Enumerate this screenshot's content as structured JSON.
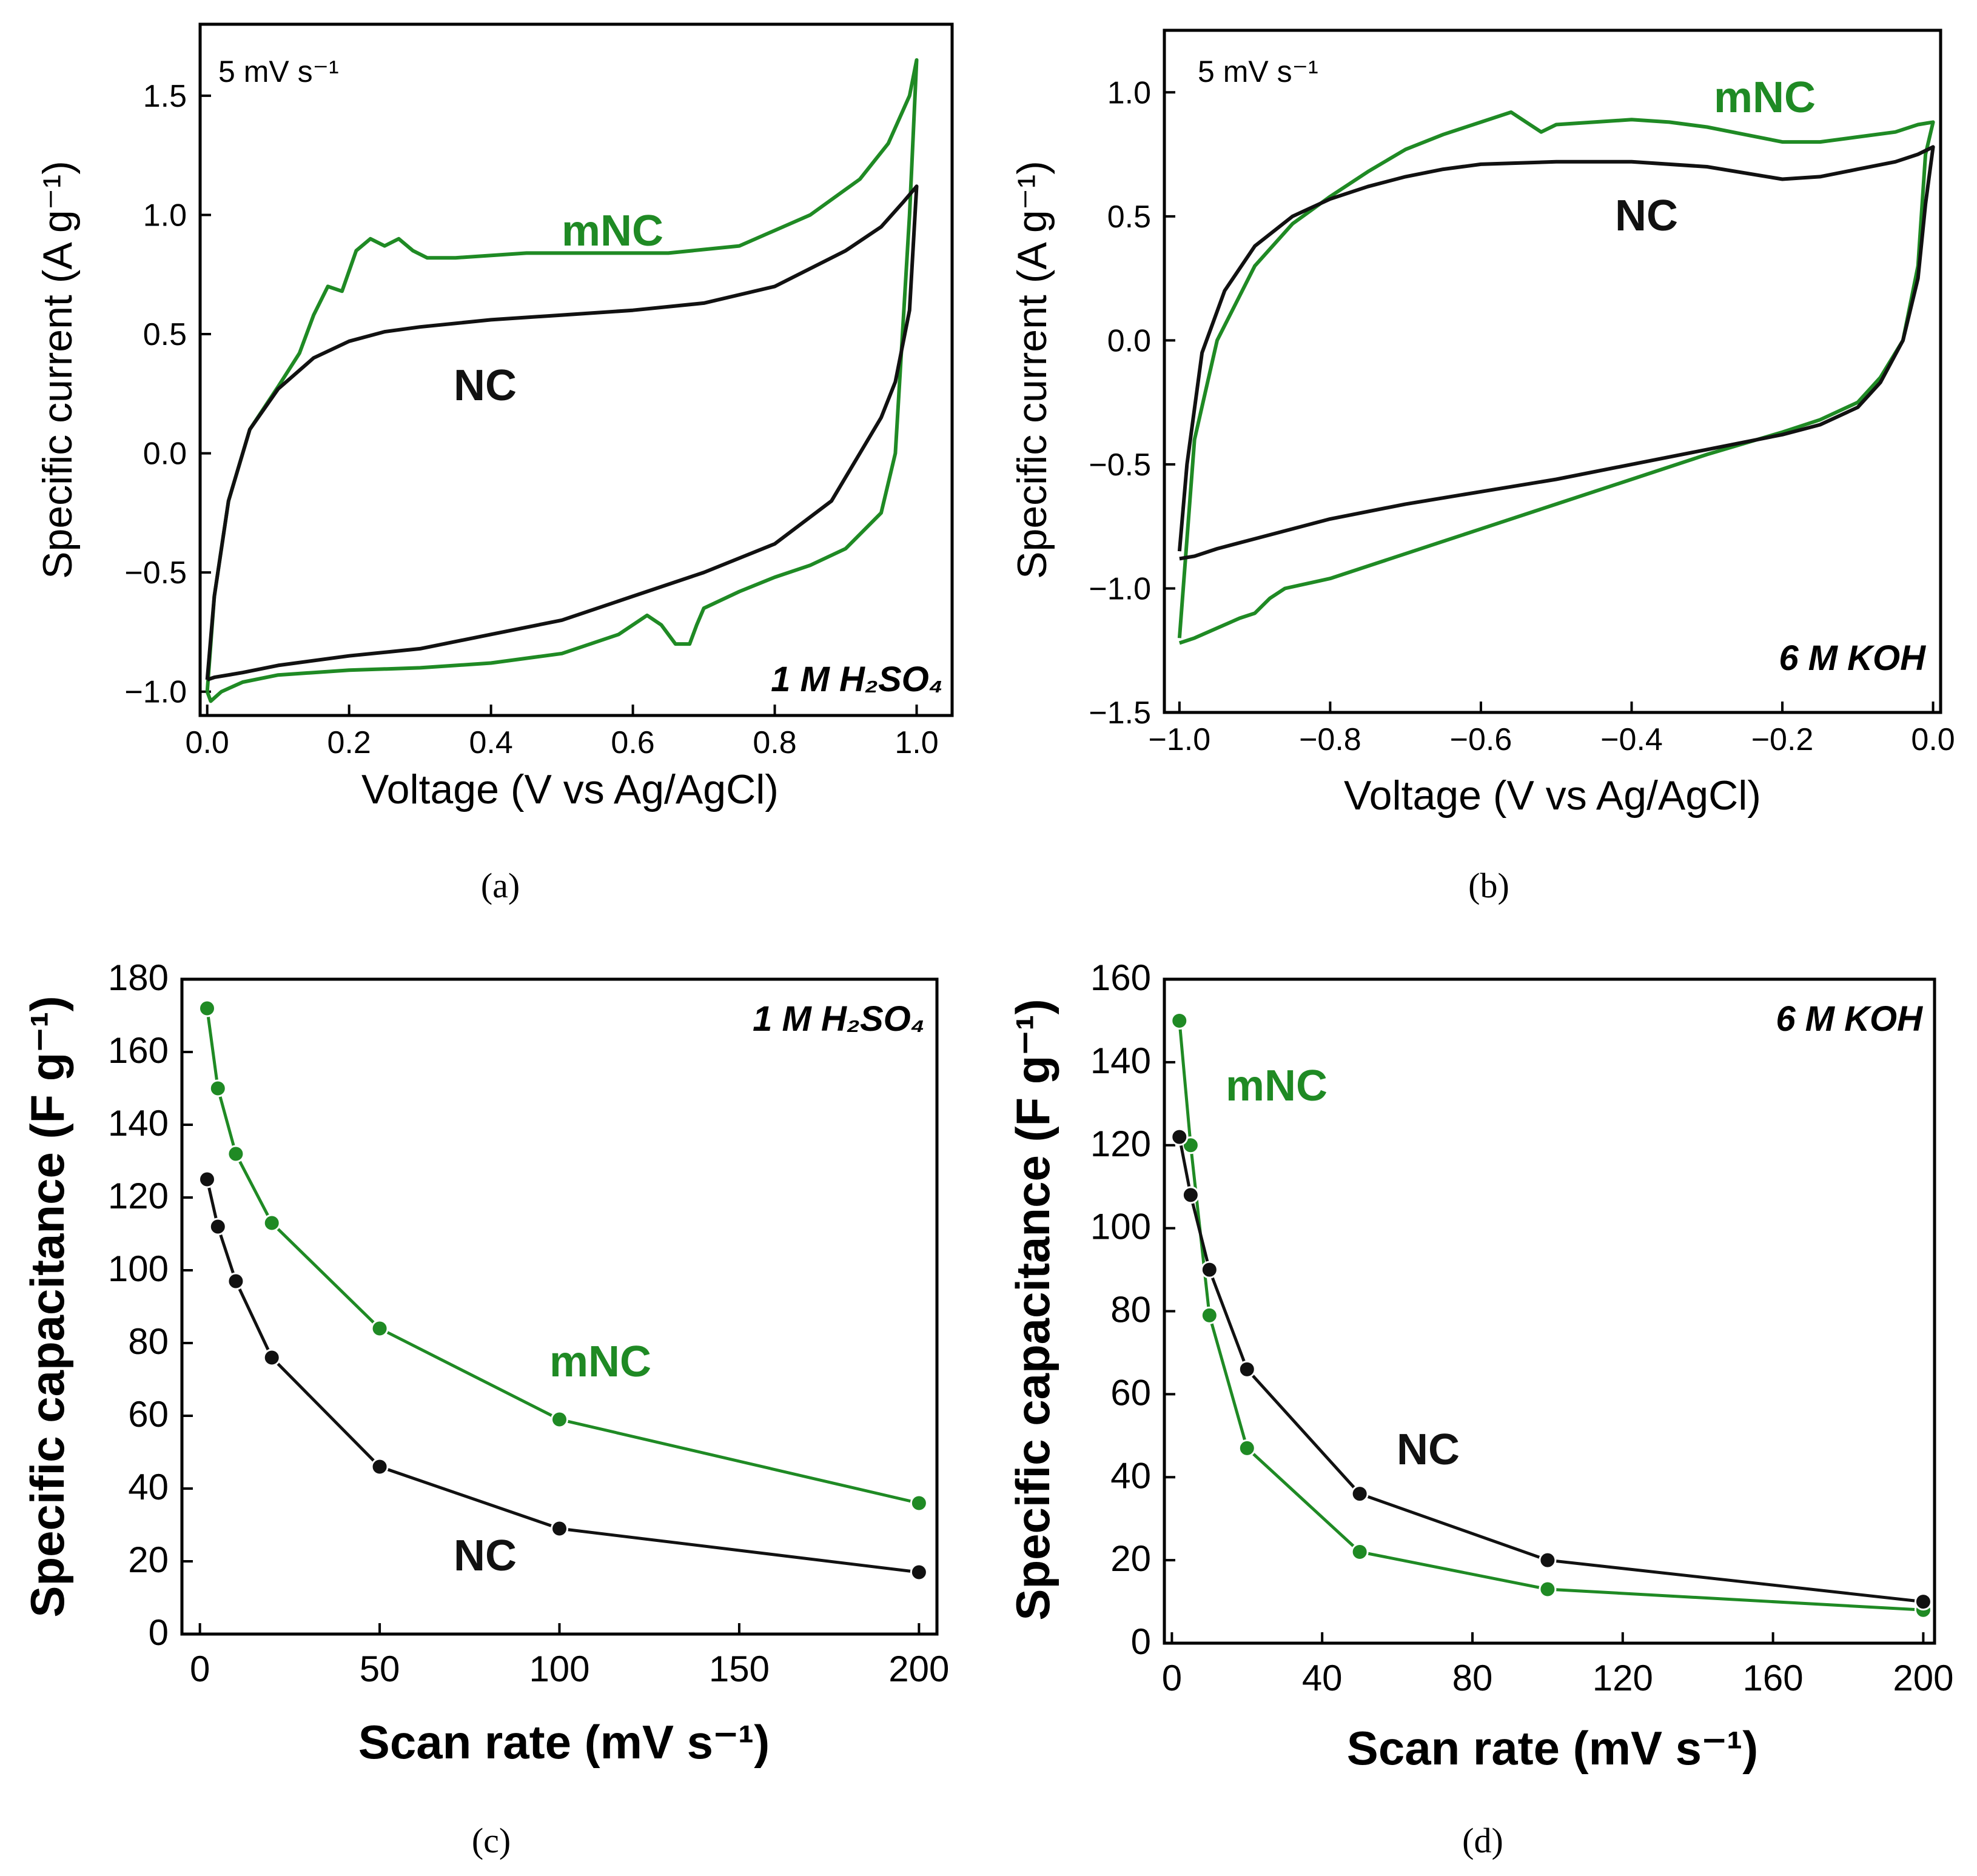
{
  "colors": {
    "mNC": "#1f8a24",
    "NC": "#111111"
  },
  "chart_data": [
    {
      "id": "a",
      "type": "line",
      "caption": "(a)",
      "xlabel": "Voltage (V vs Ag/AgCl)",
      "ylabel": "Specific current (A g⁻¹)",
      "scan_rate": "5 mV s⁻¹",
      "electrolyte": "1 M H₂SO₄",
      "xlim": [
        -0.01,
        1.05
      ],
      "ylim": [
        -1.1,
        1.8
      ],
      "xticks": [
        0.0,
        0.2,
        0.4,
        0.6,
        0.8,
        1.0
      ],
      "xtick_labels": [
        "0.0",
        "0.2",
        "0.4",
        "0.6",
        "0.8",
        "1.0"
      ],
      "yticks": [
        -1.0,
        -0.5,
        0.0,
        0.5,
        1.0,
        1.5
      ],
      "ytick_labels": [
        "−1.0",
        "−0.5",
        "0.0",
        "0.5",
        "1.0",
        "1.5"
      ],
      "series": [
        {
          "name": "mNC",
          "label": "mNC",
          "x": [
            0.0,
            0.01,
            0.03,
            0.06,
            0.1,
            0.13,
            0.15,
            0.17,
            0.19,
            0.21,
            0.23,
            0.25,
            0.27,
            0.29,
            0.31,
            0.35,
            0.45,
            0.55,
            0.65,
            0.75,
            0.85,
            0.92,
            0.96,
            0.99,
            1.0,
            0.99,
            0.98,
            0.97,
            0.95,
            0.9,
            0.85,
            0.8,
            0.75,
            0.7,
            0.69,
            0.68,
            0.66,
            0.64,
            0.62,
            0.58,
            0.5,
            0.4,
            0.3,
            0.2,
            0.1,
            0.05,
            0.02,
            0.005,
            0.0
          ],
          "y": [
            -1.0,
            -0.6,
            -0.2,
            0.1,
            0.28,
            0.42,
            0.58,
            0.7,
            0.68,
            0.85,
            0.9,
            0.87,
            0.9,
            0.85,
            0.82,
            0.82,
            0.84,
            0.84,
            0.84,
            0.87,
            1.0,
            1.15,
            1.3,
            1.5,
            1.65,
            1.0,
            0.5,
            0.0,
            -0.25,
            -0.4,
            -0.47,
            -0.52,
            -0.58,
            -0.65,
            -0.72,
            -0.8,
            -0.8,
            -0.72,
            -0.68,
            -0.76,
            -0.84,
            -0.88,
            -0.9,
            -0.91,
            -0.93,
            -0.96,
            -1.0,
            -1.04,
            -1.0
          ]
        },
        {
          "name": "NC",
          "label": "NC",
          "x": [
            0.0,
            0.01,
            0.03,
            0.06,
            0.1,
            0.15,
            0.2,
            0.25,
            0.3,
            0.4,
            0.5,
            0.6,
            0.7,
            0.8,
            0.9,
            0.95,
            0.98,
            1.0,
            0.99,
            0.97,
            0.95,
            0.92,
            0.88,
            0.8,
            0.7,
            0.6,
            0.5,
            0.4,
            0.3,
            0.2,
            0.1,
            0.05,
            0.01,
            0.0
          ],
          "y": [
            -0.95,
            -0.6,
            -0.2,
            0.1,
            0.27,
            0.4,
            0.47,
            0.51,
            0.53,
            0.56,
            0.58,
            0.6,
            0.63,
            0.7,
            0.85,
            0.95,
            1.05,
            1.12,
            0.6,
            0.3,
            0.15,
            0.0,
            -0.2,
            -0.38,
            -0.5,
            -0.6,
            -0.7,
            -0.76,
            -0.82,
            -0.85,
            -0.89,
            -0.92,
            -0.94,
            -0.95
          ]
        }
      ]
    },
    {
      "id": "b",
      "type": "line",
      "caption": "(b)",
      "xlabel": "Voltage (V vs Ag/AgCl)",
      "ylabel": "Specific current (A g⁻¹)",
      "scan_rate": "5 mV s⁻¹",
      "electrolyte": "6 M  KOH",
      "xlim": [
        -1.02,
        0.01
      ],
      "ylim": [
        -1.5,
        1.25
      ],
      "xticks": [
        -1.0,
        -0.8,
        -0.6,
        -0.4,
        -0.2,
        0.0
      ],
      "xtick_labels": [
        "−1.0",
        "−0.8",
        "−0.6",
        "−0.4",
        "−0.2",
        "0.0"
      ],
      "yticks": [
        -1.5,
        -1.0,
        -0.5,
        0.0,
        0.5,
        1.0
      ],
      "ytick_labels": [
        "−1.5",
        "−1.0",
        "−0.5",
        "0.0",
        "0.5",
        "1.0"
      ],
      "series": [
        {
          "name": "mNC",
          "label": "mNC",
          "x": [
            -1.0,
            -0.98,
            -0.95,
            -0.9,
            -0.85,
            -0.8,
            -0.75,
            -0.7,
            -0.65,
            -0.6,
            -0.56,
            -0.54,
            -0.52,
            -0.5,
            -0.45,
            -0.4,
            -0.35,
            -0.3,
            -0.25,
            -0.2,
            -0.15,
            -0.1,
            -0.05,
            -0.02,
            0.0,
            -0.01,
            -0.02,
            -0.04,
            -0.07,
            -0.1,
            -0.15,
            -0.2,
            -0.3,
            -0.4,
            -0.5,
            -0.6,
            -0.7,
            -0.8,
            -0.86,
            -0.88,
            -0.9,
            -0.92,
            -0.95,
            -0.98,
            -1.0
          ],
          "y": [
            -1.2,
            -0.4,
            0.0,
            0.3,
            0.47,
            0.58,
            0.68,
            0.77,
            0.83,
            0.88,
            0.92,
            0.88,
            0.84,
            0.87,
            0.88,
            0.89,
            0.88,
            0.86,
            0.83,
            0.8,
            0.8,
            0.82,
            0.84,
            0.87,
            0.88,
            0.75,
            0.3,
            0.0,
            -0.15,
            -0.25,
            -0.32,
            -0.37,
            -0.46,
            -0.56,
            -0.66,
            -0.76,
            -0.86,
            -0.96,
            -1.0,
            -1.04,
            -1.1,
            -1.12,
            -1.16,
            -1.2,
            -1.22
          ]
        },
        {
          "name": "NC",
          "label": "NC",
          "x": [
            -1.0,
            -0.99,
            -0.97,
            -0.94,
            -0.9,
            -0.85,
            -0.8,
            -0.75,
            -0.7,
            -0.65,
            -0.6,
            -0.5,
            -0.4,
            -0.3,
            -0.22,
            -0.2,
            -0.15,
            -0.1,
            -0.05,
            -0.02,
            0.0,
            -0.01,
            -0.02,
            -0.04,
            -0.07,
            -0.1,
            -0.15,
            -0.2,
            -0.3,
            -0.4,
            -0.5,
            -0.6,
            -0.7,
            -0.8,
            -0.9,
            -0.95,
            -0.98,
            -1.0
          ],
          "y": [
            -0.85,
            -0.5,
            -0.05,
            0.2,
            0.38,
            0.5,
            0.57,
            0.62,
            0.66,
            0.69,
            0.71,
            0.72,
            0.72,
            0.7,
            0.66,
            0.65,
            0.66,
            0.69,
            0.72,
            0.75,
            0.78,
            0.55,
            0.25,
            0.0,
            -0.17,
            -0.27,
            -0.34,
            -0.38,
            -0.44,
            -0.5,
            -0.56,
            -0.61,
            -0.66,
            -0.72,
            -0.8,
            -0.84,
            -0.87,
            -0.88
          ]
        }
      ]
    },
    {
      "id": "c",
      "type": "line",
      "caption": "(c)",
      "xlabel": "Scan rate (mV s⁻¹)",
      "ylabel": "Specific capacitance (F g⁻¹)",
      "electrolyte": "1 M H₂SO₄",
      "xlim": [
        -5,
        205
      ],
      "ylim": [
        0,
        180
      ],
      "xticks": [
        0,
        50,
        100,
        150,
        200
      ],
      "xtick_labels": [
        "0",
        "50",
        "100",
        "150",
        "200"
      ],
      "yticks": [
        0,
        20,
        40,
        60,
        80,
        100,
        120,
        140,
        160,
        180
      ],
      "ytick_labels": [
        "0",
        "20",
        "40",
        "60",
        "80",
        "100",
        "120",
        "140",
        "160",
        "180"
      ],
      "series": [
        {
          "name": "mNC",
          "label": "mNC",
          "x": [
            2,
            5,
            10,
            20,
            50,
            100,
            200
          ],
          "y": [
            172,
            150,
            132,
            113,
            84,
            59,
            36
          ]
        },
        {
          "name": "NC",
          "label": "NC",
          "x": [
            2,
            5,
            10,
            20,
            50,
            100,
            200
          ],
          "y": [
            125,
            112,
            97,
            76,
            46,
            29,
            17
          ]
        }
      ]
    },
    {
      "id": "d",
      "type": "line",
      "caption": "(d)",
      "xlabel": "Scan rate (mV s⁻¹)",
      "ylabel": "Specific capacitance (F g⁻¹)",
      "electrolyte": "6 M KOH",
      "xlim": [
        -2,
        203
      ],
      "ylim": [
        0,
        160
      ],
      "xticks": [
        0,
        40,
        80,
        120,
        160,
        200
      ],
      "xtick_labels": [
        "0",
        "40",
        "80",
        "120",
        "160",
        "200"
      ],
      "yticks": [
        0,
        20,
        40,
        60,
        80,
        100,
        120,
        140,
        160
      ],
      "ytick_labels": [
        "0",
        "20",
        "40",
        "60",
        "80",
        "100",
        "120",
        "140",
        "160"
      ],
      "series": [
        {
          "name": "mNC",
          "label": "mNC",
          "x": [
            2,
            5,
            10,
            20,
            50,
            100,
            200
          ],
          "y": [
            150,
            120,
            79,
            47,
            22,
            13,
            8
          ]
        },
        {
          "name": "NC",
          "label": "NC",
          "x": [
            2,
            5,
            10,
            20,
            50,
            100,
            200
          ],
          "y": [
            122,
            108,
            90,
            66,
            36,
            20,
            10
          ]
        }
      ]
    }
  ]
}
